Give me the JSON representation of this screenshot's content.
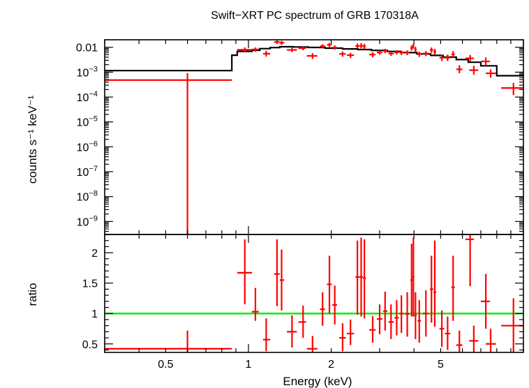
{
  "chart_data": [
    {
      "type": "scatter",
      "title": "Swift−XRT PC spectrum of GRB 170318A",
      "ylabel": "counts s⁻¹ keV⁻¹",
      "xlabel": "",
      "xscale": "log",
      "yscale": "log",
      "xlim": [
        0.3,
        10
      ],
      "ylim": [
        3e-10,
        0.02
      ],
      "yticks": [
        {
          "value": 0.01,
          "label": "0.01",
          "base": "",
          "exp": ""
        },
        {
          "value": 0.001,
          "label": "",
          "base": "10",
          "exp": "−3"
        },
        {
          "value": 0.0001,
          "label": "",
          "base": "10",
          "exp": "−4"
        },
        {
          "value": 1e-05,
          "label": "",
          "base": "10",
          "exp": "−5"
        },
        {
          "value": 1e-06,
          "label": "",
          "base": "10",
          "exp": "−6"
        },
        {
          "value": 1e-07,
          "label": "",
          "base": "10",
          "exp": "−7"
        },
        {
          "value": 1e-08,
          "label": "",
          "base": "10",
          "exp": "−8"
        },
        {
          "value": 1e-09,
          "label": "",
          "base": "10",
          "exp": "−9"
        }
      ],
      "colors": {
        "data": "#ff0000",
        "model": "#000000"
      },
      "series": [
        {
          "kind": "data",
          "points": [
            {
              "x": 0.6,
              "xlo": 0.3,
              "xhi": 0.87,
              "y": 0.00048,
              "ylo": 1e-12,
              "yhi": 0.0009
            },
            {
              "x": 0.97,
              "xlo": 0.91,
              "xhi": 1.03,
              "y": 0.0079,
              "ylo": 0.0062,
              "yhi": 0.0098
            },
            {
              "x": 1.06,
              "xlo": 1.03,
              "xhi": 1.09,
              "y": 0.0082,
              "ylo": 0.0066,
              "yhi": 0.0098
            },
            {
              "x": 1.16,
              "xlo": 1.13,
              "xhi": 1.2,
              "y": 0.0055,
              "ylo": 0.0042,
              "yhi": 0.0072
            },
            {
              "x": 1.27,
              "xlo": 1.24,
              "xhi": 1.3,
              "y": 0.0162,
              "ylo": 0.0135,
              "yhi": 0.0193
            },
            {
              "x": 1.32,
              "xlo": 1.3,
              "xhi": 1.35,
              "y": 0.0152,
              "ylo": 0.0125,
              "yhi": 0.018
            },
            {
              "x": 1.44,
              "xlo": 1.38,
              "xhi": 1.5,
              "y": 0.0078,
              "ylo": 0.0064,
              "yhi": 0.0094
            },
            {
              "x": 1.58,
              "xlo": 1.52,
              "xhi": 1.62,
              "y": 0.0092,
              "ylo": 0.0076,
              "yhi": 0.011
            },
            {
              "x": 1.71,
              "xlo": 1.63,
              "xhi": 1.78,
              "y": 0.0045,
              "ylo": 0.0034,
              "yhi": 0.0058
            },
            {
              "x": 1.86,
              "xlo": 1.82,
              "xhi": 1.9,
              "y": 0.011,
              "ylo": 0.009,
              "yhi": 0.0132
            },
            {
              "x": 1.97,
              "xlo": 1.93,
              "xhi": 2.01,
              "y": 0.0125,
              "ylo": 0.0102,
              "yhi": 0.015
            },
            {
              "x": 2.06,
              "xlo": 2.02,
              "xhi": 2.1,
              "y": 0.0098,
              "ylo": 0.008,
              "yhi": 0.0118
            },
            {
              "x": 2.2,
              "xlo": 2.14,
              "xhi": 2.26,
              "y": 0.0054,
              "ylo": 0.0042,
              "yhi": 0.0068
            },
            {
              "x": 2.35,
              "xlo": 2.28,
              "xhi": 2.42,
              "y": 0.0048,
              "ylo": 0.0037,
              "yhi": 0.006
            },
            {
              "x": 2.49,
              "xlo": 2.45,
              "xhi": 2.53,
              "y": 0.0112,
              "ylo": 0.009,
              "yhi": 0.0142
            },
            {
              "x": 2.57,
              "xlo": 2.53,
              "xhi": 2.61,
              "y": 0.0114,
              "ylo": 0.009,
              "yhi": 0.0148
            },
            {
              "x": 2.64,
              "xlo": 2.61,
              "xhi": 2.67,
              "y": 0.0108,
              "ylo": 0.0085,
              "yhi": 0.0138
            },
            {
              "x": 2.83,
              "xlo": 2.75,
              "xhi": 2.9,
              "y": 0.0051,
              "ylo": 0.004,
              "yhi": 0.0063
            },
            {
              "x": 3.0,
              "xlo": 2.93,
              "xhi": 3.07,
              "y": 0.0062,
              "ylo": 0.005,
              "yhi": 0.0075
            },
            {
              "x": 3.14,
              "xlo": 3.09,
              "xhi": 3.2,
              "y": 0.0071,
              "ylo": 0.0058,
              "yhi": 0.0087
            },
            {
              "x": 3.3,
              "xlo": 3.23,
              "xhi": 3.38,
              "y": 0.0056,
              "ylo": 0.0045,
              "yhi": 0.0068
            },
            {
              "x": 3.46,
              "xlo": 3.4,
              "xhi": 3.52,
              "y": 0.0063,
              "ylo": 0.0051,
              "yhi": 0.0076
            },
            {
              "x": 3.6,
              "xlo": 3.54,
              "xhi": 3.67,
              "y": 0.0061,
              "ylo": 0.0049,
              "yhi": 0.0074
            },
            {
              "x": 3.78,
              "xlo": 3.72,
              "xhi": 3.84,
              "y": 0.0061,
              "ylo": 0.0048,
              "yhi": 0.0075
            },
            {
              "x": 3.92,
              "xlo": 3.88,
              "xhi": 3.96,
              "y": 0.0094,
              "ylo": 0.0074,
              "yhi": 0.0118
            },
            {
              "x": 3.98,
              "xlo": 3.95,
              "xhi": 4.01,
              "y": 0.0112,
              "ylo": 0.0088,
              "yhi": 0.0142
            },
            {
              "x": 4.05,
              "xlo": 4.01,
              "xhi": 4.09,
              "y": 0.0082,
              "ylo": 0.0064,
              "yhi": 0.0104
            },
            {
              "x": 4.18,
              "xlo": 4.12,
              "xhi": 4.24,
              "y": 0.0053,
              "ylo": 0.0041,
              "yhi": 0.0067
            },
            {
              "x": 4.42,
              "xlo": 4.3,
              "xhi": 4.52,
              "y": 0.0056,
              "ylo": 0.0044,
              "yhi": 0.007
            },
            {
              "x": 4.63,
              "xlo": 4.57,
              "xhi": 4.7,
              "y": 0.0078,
              "ylo": 0.006,
              "yhi": 0.0098
            },
            {
              "x": 4.76,
              "xlo": 4.71,
              "xhi": 4.82,
              "y": 0.0067,
              "ylo": 0.0051,
              "yhi": 0.0086
            },
            {
              "x": 5.05,
              "xlo": 4.95,
              "xhi": 5.15,
              "y": 0.0038,
              "ylo": 0.0028,
              "yhi": 0.0051
            },
            {
              "x": 5.3,
              "xlo": 5.18,
              "xhi": 5.42,
              "y": 0.0038,
              "ylo": 0.0028,
              "yhi": 0.0051
            },
            {
              "x": 5.55,
              "xlo": 5.47,
              "xhi": 5.63,
              "y": 0.0052,
              "ylo": 0.0038,
              "yhi": 0.007
            },
            {
              "x": 5.85,
              "xlo": 5.7,
              "xhi": 6.0,
              "y": 0.0013,
              "ylo": 0.0009,
              "yhi": 0.0019
            },
            {
              "x": 6.4,
              "xlo": 6.15,
              "xhi": 6.6,
              "y": 0.0036,
              "ylo": 0.0026,
              "yhi": 0.0049
            },
            {
              "x": 6.6,
              "xlo": 6.35,
              "xhi": 6.85,
              "y": 0.0012,
              "ylo": 0.0008,
              "yhi": 0.0018
            },
            {
              "x": 7.3,
              "xlo": 7.0,
              "xhi": 7.55,
              "y": 0.0027,
              "ylo": 0.0018,
              "yhi": 0.0039
            },
            {
              "x": 7.6,
              "xlo": 7.3,
              "xhi": 7.95,
              "y": 0.0009,
              "ylo": 0.0006,
              "yhi": 0.0013
            },
            {
              "x": 9.2,
              "xlo": 8.3,
              "xhi": 10.0,
              "y": 0.00023,
              "ylo": 0.00012,
              "yhi": 0.00037
            }
          ]
        },
        {
          "kind": "model",
          "steps": [
            {
              "x0": 0.3,
              "x1": 0.87,
              "y": 0.00115
            },
            {
              "x0": 0.87,
              "x1": 0.91,
              "y": 0.0048
            },
            {
              "x0": 0.91,
              "x1": 1.03,
              "y": 0.0068
            },
            {
              "x0": 1.03,
              "x1": 1.1,
              "y": 0.0076
            },
            {
              "x0": 1.1,
              "x1": 1.2,
              "y": 0.0088
            },
            {
              "x0": 1.2,
              "x1": 1.3,
              "y": 0.0097
            },
            {
              "x0": 1.3,
              "x1": 1.45,
              "y": 0.0105
            },
            {
              "x0": 1.45,
              "x1": 1.65,
              "y": 0.0103
            },
            {
              "x0": 1.65,
              "x1": 1.9,
              "y": 0.0098
            },
            {
              "x0": 1.9,
              "x1": 2.2,
              "y": 0.0092
            },
            {
              "x0": 2.2,
              "x1": 2.5,
              "y": 0.0086
            },
            {
              "x0": 2.5,
              "x1": 2.8,
              "y": 0.0081
            },
            {
              "x0": 2.8,
              "x1": 3.2,
              "y": 0.0075
            },
            {
              "x0": 3.2,
              "x1": 3.6,
              "y": 0.0068
            },
            {
              "x0": 3.6,
              "x1": 4.1,
              "y": 0.0061
            },
            {
              "x0": 4.1,
              "x1": 4.6,
              "y": 0.0054
            },
            {
              "x0": 4.6,
              "x1": 5.1,
              "y": 0.0047
            },
            {
              "x0": 5.1,
              "x1": 5.7,
              "y": 0.004
            },
            {
              "x0": 5.7,
              "x1": 6.3,
              "y": 0.0032
            },
            {
              "x0": 6.3,
              "x1": 7.0,
              "y": 0.0025
            },
            {
              "x0": 7.0,
              "x1": 8.0,
              "y": 0.0018
            },
            {
              "x0": 8.0,
              "x1": 10.0,
              "y": 0.00072
            }
          ]
        }
      ]
    },
    {
      "type": "scatter",
      "title": "",
      "xlabel": "Energy (keV)",
      "ylabel": "ratio",
      "xscale": "log",
      "xlim": [
        0.3,
        10
      ],
      "ylim": [
        0.36,
        2.3
      ],
      "xticks": [
        {
          "value": 0.5,
          "label": "0.5"
        },
        {
          "value": 1,
          "label": "1"
        },
        {
          "value": 2,
          "label": "2"
        },
        {
          "value": 5,
          "label": "5"
        }
      ],
      "yticks": [
        {
          "value": 0.5,
          "label": "0.5"
        },
        {
          "value": 1,
          "label": "1"
        },
        {
          "value": 1.5,
          "label": "1.5"
        },
        {
          "value": 2,
          "label": "2"
        }
      ],
      "colors": {
        "data": "#ff0000",
        "reference": "#00ee00"
      },
      "reference_line": 1,
      "series": [
        {
          "kind": "data",
          "points": [
            {
              "x": 0.6,
              "xlo": 0.3,
              "xhi": 0.87,
              "y": 0.42,
              "ylo": 0.0,
              "yhi": 0.72
            },
            {
              "x": 0.97,
              "xlo": 0.91,
              "xhi": 1.03,
              "y": 1.67,
              "ylo": 1.15,
              "yhi": 2.22
            },
            {
              "x": 1.06,
              "xlo": 1.03,
              "xhi": 1.09,
              "y": 1.03,
              "ylo": 0.88,
              "yhi": 1.42
            },
            {
              "x": 1.16,
              "xlo": 1.13,
              "xhi": 1.2,
              "y": 0.57,
              "ylo": 0.38,
              "yhi": 0.92
            },
            {
              "x": 1.27,
              "xlo": 1.24,
              "xhi": 1.3,
              "y": 1.65,
              "ylo": 1.12,
              "yhi": 2.22
            },
            {
              "x": 1.32,
              "xlo": 1.3,
              "xhi": 1.35,
              "y": 1.55,
              "ylo": 1.05,
              "yhi": 2.05
            },
            {
              "x": 1.44,
              "xlo": 1.38,
              "xhi": 1.5,
              "y": 0.7,
              "ylo": 0.44,
              "yhi": 0.97
            },
            {
              "x": 1.58,
              "xlo": 1.52,
              "xhi": 1.62,
              "y": 0.86,
              "ylo": 0.6,
              "yhi": 1.13
            },
            {
              "x": 1.71,
              "xlo": 1.63,
              "xhi": 1.78,
              "y": 0.42,
              "ylo": 0.3,
              "yhi": 0.63
            },
            {
              "x": 1.86,
              "xlo": 1.82,
              "xhi": 1.9,
              "y": 1.07,
              "ylo": 0.8,
              "yhi": 1.35
            },
            {
              "x": 1.97,
              "xlo": 1.93,
              "xhi": 2.01,
              "y": 1.48,
              "ylo": 1.0,
              "yhi": 1.95
            },
            {
              "x": 2.06,
              "xlo": 2.02,
              "xhi": 2.1,
              "y": 1.14,
              "ylo": 0.82,
              "yhi": 1.46
            },
            {
              "x": 2.2,
              "xlo": 2.14,
              "xhi": 2.26,
              "y": 0.6,
              "ylo": 0.38,
              "yhi": 0.84
            },
            {
              "x": 2.35,
              "xlo": 2.28,
              "xhi": 2.42,
              "y": 0.67,
              "ylo": 0.48,
              "yhi": 0.9
            },
            {
              "x": 2.49,
              "xlo": 2.45,
              "xhi": 2.53,
              "y": 1.6,
              "ylo": 0.98,
              "yhi": 2.2
            },
            {
              "x": 2.57,
              "xlo": 2.53,
              "xhi": 2.61,
              "y": 1.6,
              "ylo": 0.95,
              "yhi": 2.25
            },
            {
              "x": 2.64,
              "xlo": 2.61,
              "xhi": 2.67,
              "y": 1.58,
              "ylo": 0.92,
              "yhi": 2.22
            },
            {
              "x": 2.83,
              "xlo": 2.75,
              "xhi": 2.9,
              "y": 0.73,
              "ylo": 0.52,
              "yhi": 0.96
            },
            {
              "x": 3.0,
              "xlo": 2.93,
              "xhi": 3.07,
              "y": 0.91,
              "ylo": 0.66,
              "yhi": 1.15
            },
            {
              "x": 3.14,
              "xlo": 3.09,
              "xhi": 3.2,
              "y": 1.04,
              "ylo": 0.72,
              "yhi": 1.36
            },
            {
              "x": 3.3,
              "xlo": 3.23,
              "xhi": 3.38,
              "y": 0.86,
              "ylo": 0.58,
              "yhi": 1.15
            },
            {
              "x": 3.46,
              "xlo": 3.4,
              "xhi": 3.52,
              "y": 0.93,
              "ylo": 0.64,
              "yhi": 1.22
            },
            {
              "x": 3.6,
              "xlo": 3.54,
              "xhi": 3.67,
              "y": 1.0,
              "ylo": 0.68,
              "yhi": 1.3
            },
            {
              "x": 3.78,
              "xlo": 3.72,
              "xhi": 3.84,
              "y": 0.99,
              "ylo": 0.62,
              "yhi": 1.35
            },
            {
              "x": 3.92,
              "xlo": 3.88,
              "xhi": 3.96,
              "y": 1.55,
              "ylo": 0.95,
              "yhi": 2.15
            },
            {
              "x": 3.98,
              "xlo": 3.95,
              "xhi": 4.01,
              "y": 1.6,
              "ylo": 0.95,
              "yhi": 2.25
            },
            {
              "x": 4.05,
              "xlo": 4.01,
              "xhi": 4.09,
              "y": 0.97,
              "ylo": 0.58,
              "yhi": 1.35
            },
            {
              "x": 4.18,
              "xlo": 4.12,
              "xhi": 4.24,
              "y": 0.88,
              "ylo": 0.52,
              "yhi": 1.22
            },
            {
              "x": 4.42,
              "xlo": 4.3,
              "xhi": 4.52,
              "y": 1.0,
              "ylo": 0.62,
              "yhi": 1.38
            },
            {
              "x": 4.63,
              "xlo": 4.57,
              "xhi": 4.7,
              "y": 1.4,
              "ylo": 0.85,
              "yhi": 1.95
            },
            {
              "x": 4.76,
              "xlo": 4.71,
              "xhi": 4.82,
              "y": 1.35,
              "ylo": 0.78,
              "yhi": 2.2
            },
            {
              "x": 5.05,
              "xlo": 4.95,
              "xhi": 5.15,
              "y": 0.75,
              "ylo": 0.45,
              "yhi": 1.05
            },
            {
              "x": 5.3,
              "xlo": 5.18,
              "xhi": 5.42,
              "y": 0.67,
              "ylo": 0.4,
              "yhi": 0.95
            },
            {
              "x": 5.55,
              "xlo": 5.47,
              "xhi": 5.63,
              "y": 1.43,
              "ylo": 0.88,
              "yhi": 1.95
            },
            {
              "x": 5.85,
              "xlo": 5.7,
              "xhi": 6.0,
              "y": 0.48,
              "ylo": 0.3,
              "yhi": 0.72
            },
            {
              "x": 6.4,
              "xlo": 6.15,
              "xhi": 6.6,
              "y": 2.22,
              "ylo": 1.45,
              "yhi": 2.3
            },
            {
              "x": 6.6,
              "xlo": 6.35,
              "xhi": 6.85,
              "y": 0.55,
              "ylo": 0.32,
              "yhi": 0.8
            },
            {
              "x": 7.3,
              "xlo": 7.0,
              "xhi": 7.55,
              "y": 1.2,
              "ylo": 0.75,
              "yhi": 1.65
            },
            {
              "x": 7.6,
              "xlo": 7.3,
              "xhi": 7.95,
              "y": 0.5,
              "ylo": 0.3,
              "yhi": 0.75
            },
            {
              "x": 9.2,
              "xlo": 8.3,
              "xhi": 10.0,
              "y": 0.8,
              "ylo": 0.36,
              "yhi": 1.25
            }
          ]
        }
      ]
    }
  ]
}
